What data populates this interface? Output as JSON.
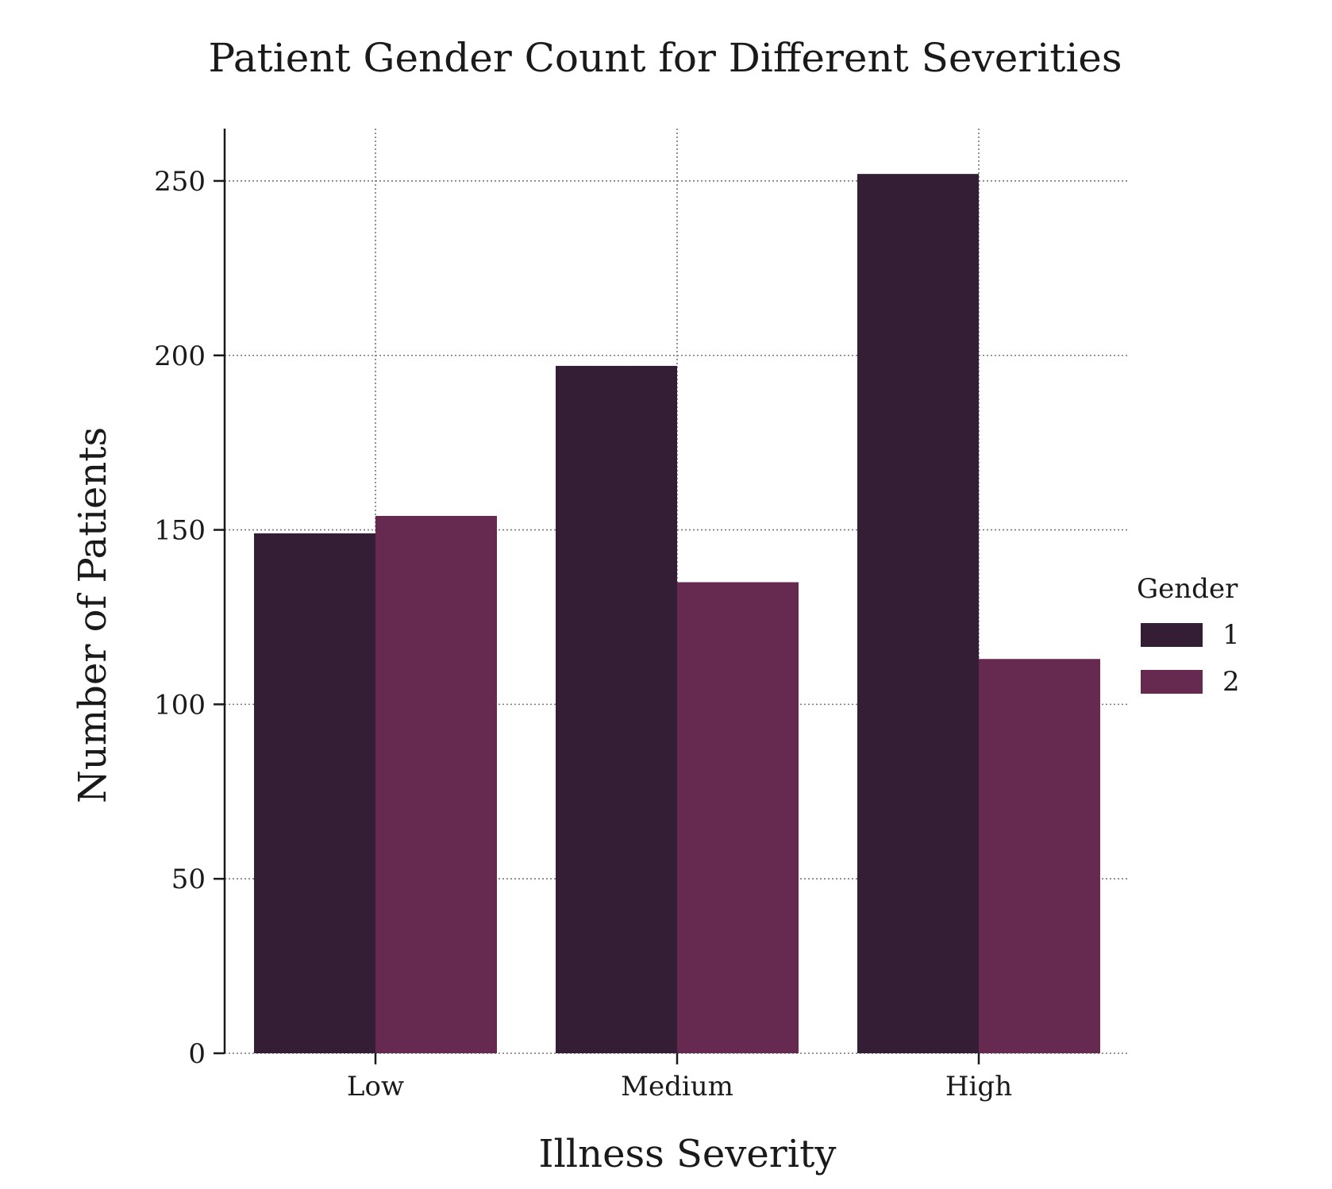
{
  "chart_data": {
    "type": "bar",
    "title": "Patient Gender Count for Different Severities",
    "xlabel": "Illness Severity",
    "ylabel": "Number of Patients",
    "categories": [
      "Low",
      "Medium",
      "High"
    ],
    "series": [
      {
        "name": "1",
        "values": [
          149,
          197,
          252
        ],
        "color": "#331e36"
      },
      {
        "name": "2",
        "values": [
          154,
          135,
          113
        ],
        "color": "#662a51"
      }
    ],
    "ylim": [
      0,
      265
    ],
    "yticks": [
      0,
      50,
      100,
      150,
      200,
      250
    ],
    "grid": true,
    "legend": {
      "title": "Gender",
      "position": "right"
    }
  }
}
